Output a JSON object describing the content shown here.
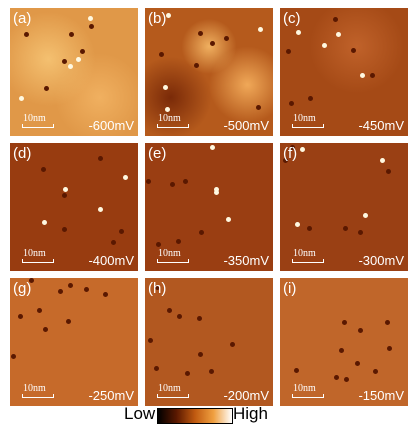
{
  "panels": [
    {
      "label": "(a)",
      "voltage": "-600mV",
      "scale": "10nm"
    },
    {
      "label": "(b)",
      "voltage": "-500mV",
      "scale": "10nm"
    },
    {
      "label": "(c)",
      "voltage": "-450mV",
      "scale": "10nm"
    },
    {
      "label": "(d)",
      "voltage": "-400mV",
      "scale": "10nm"
    },
    {
      "label": "(e)",
      "voltage": "-350mV",
      "scale": "10nm"
    },
    {
      "label": "(f)",
      "voltage": "-300mV",
      "scale": "10nm"
    },
    {
      "label": "(g)",
      "voltage": "-250mV",
      "scale": "10nm"
    },
    {
      "label": "(h)",
      "voltage": "-200mV",
      "scale": "10nm"
    },
    {
      "label": "(i)",
      "voltage": "-150mV",
      "scale": "10nm"
    }
  ],
  "colorbar": {
    "low": "Low",
    "high": "High"
  }
}
